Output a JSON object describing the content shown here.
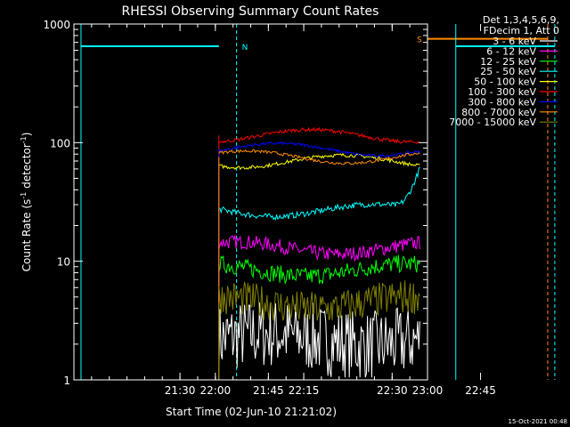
{
  "chart_data": {
    "type": "line",
    "title": "RHESSI Observing Summary Count Rates",
    "xlabel": "Start Time (02-Jun-10 21:21:02)",
    "ylabel_main": "Count Rate (s",
    "ylabel_sup1": "-1",
    "ylabel_mid": " detector",
    "ylabel_sup2": "-1",
    "ylabel_end": ")",
    "ylim": [
      1,
      1000
    ],
    "yscale": "log",
    "xlim_min": [
      21.2,
      23.0
    ],
    "x_ticks": [
      {
        "min": 21.5,
        "label": "21:30"
      },
      {
        "min": 21.75,
        "label": "21:45"
      },
      {
        "min": 22.0,
        "label": "22:00"
      },
      {
        "min": 22.25,
        "label": "22:15"
      },
      {
        "min": 22.5,
        "label": "22:30"
      },
      {
        "min": 22.75,
        "label": "22:45"
      },
      {
        "min": 23.0,
        "label": "23:00"
      }
    ],
    "y_ticks": [
      {
        "value": 1,
        "label": "1"
      },
      {
        "value": 10,
        "label": "10"
      },
      {
        "value": 100,
        "label": "100"
      },
      {
        "value": 1000,
        "label": "1000"
      }
    ],
    "legend_header": [
      "Det 1,3,4,5,6,9,",
      "FDecim 1, Att 0"
    ],
    "legend_placement": "right",
    "footer_date": "15-Oct-2021 00:48",
    "series": [
      {
        "name": "3 - 6 keV",
        "color": "#ffffff",
        "start": 21.61,
        "end": 22.583,
        "level": 2.2,
        "noise": 0.6
      },
      {
        "name": "6 - 12 keV",
        "color": "#ff00ff",
        "start": 21.61,
        "end": 22.583,
        "level": 13,
        "noise": 0.12
      },
      {
        "name": "12 - 25 keV",
        "color": "#00ff00",
        "start": 21.61,
        "end": 22.583,
        "level": 8.5,
        "noise": 0.15
      },
      {
        "name": "25 - 50 keV",
        "color": "#00ffff",
        "start": 21.61,
        "end": 22.583,
        "level": 27,
        "noise": 0.05
      },
      {
        "name": "50 - 100 keV",
        "color": "#ffff00",
        "start": 21.61,
        "end": 22.583,
        "level": 70,
        "noise": 0.03
      },
      {
        "name": "100 - 300 keV",
        "color": "#ff0000",
        "start": 21.61,
        "end": 22.583,
        "level": 115,
        "noise": 0.03
      },
      {
        "name": "300 - 800 keV",
        "color": "#0000ff",
        "start": 21.61,
        "end": 22.583,
        "level": 88,
        "noise": 0.025
      },
      {
        "name": "800 - 7000 keV",
        "color": "#ff8c00",
        "start": 21.61,
        "end": 22.583,
        "level": 76,
        "noise": 0.025
      },
      {
        "name": "7000 - 15000 keV",
        "color": "#808000",
        "start": 21.61,
        "end": 22.583,
        "level": 4.5,
        "noise": 0.3
      }
    ],
    "markers": [
      {
        "label": "N",
        "color": "#00ffff",
        "solid_min": [
          21.222,
          21.61
        ],
        "dashed_min": 21.66,
        "level": 650
      },
      {
        "label": "S",
        "color": "#ff8c00",
        "solid_min": [
          22.6,
          22.937
        ],
        "dashed_min": 22.937,
        "level": 750
      },
      {
        "label": "",
        "color": "#00ffff",
        "solid_min": [
          22.68,
          22.963
        ],
        "dashed_min": 22.963,
        "level": 650
      }
    ]
  }
}
